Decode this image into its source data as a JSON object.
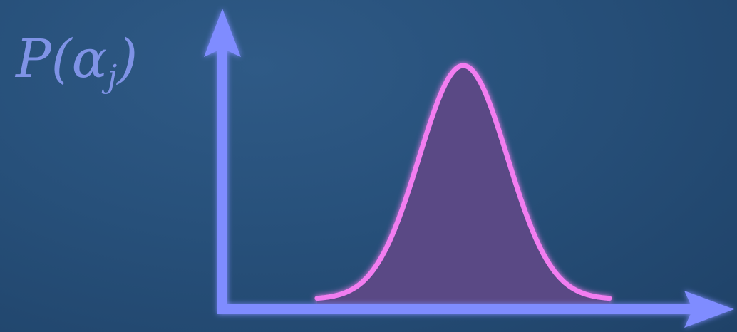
{
  "diagram": {
    "y_axis_label_main": "P(α",
    "y_axis_label_sub": "j",
    "y_axis_label_close": ")",
    "curve": {
      "type": "gaussian"
    },
    "colors": {
      "axis": "#7f8cff",
      "curve_line": "#f27df0",
      "curve_fill": "#5a4a85",
      "label": "#7f93e6"
    }
  }
}
